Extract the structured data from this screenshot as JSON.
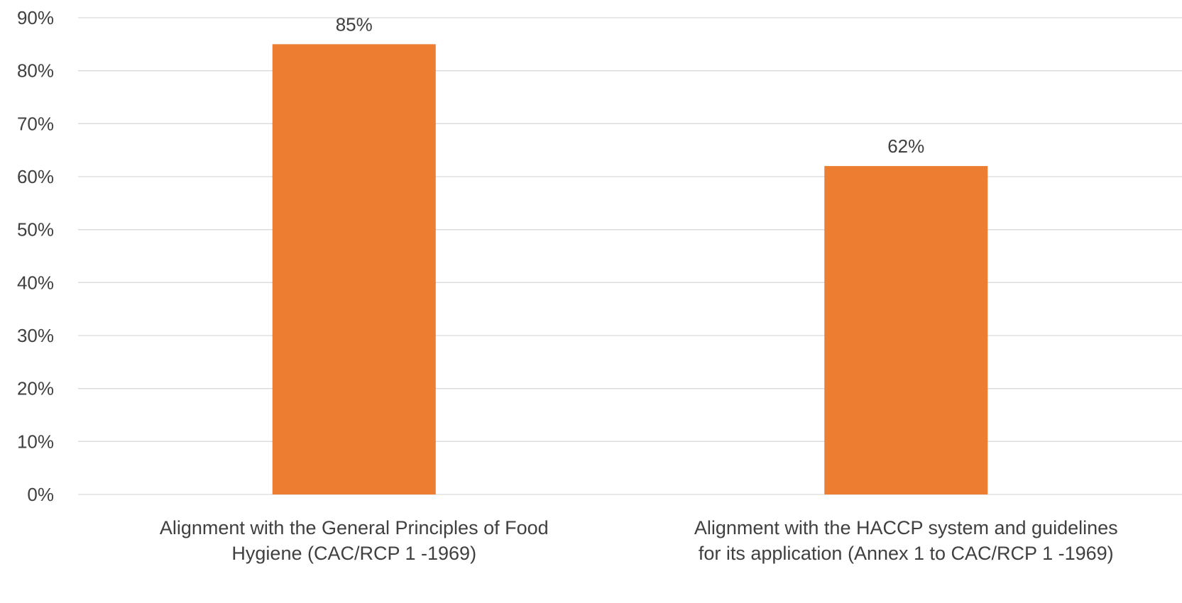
{
  "chart_data": {
    "type": "bar",
    "categories": [
      [
        "Alignment with the General Principles of Food",
        "Hygiene (CAC/RCP 1 -1969)"
      ],
      [
        "Alignment with the HACCP system and guidelines",
        "for its application (Annex 1 to CAC/RCP 1 -1969)"
      ]
    ],
    "values": [
      85,
      62
    ],
    "data_labels": [
      "85%",
      "62%"
    ],
    "yticks": [
      "0%",
      "10%",
      "20%",
      "30%",
      "40%",
      "50%",
      "60%",
      "70%",
      "80%",
      "90%"
    ],
    "ylim": [
      0,
      90
    ],
    "grid": true,
    "legend": "none",
    "bar_color": "#ED7D31",
    "grid_color": "#D9D9D9",
    "text_color": "#404040"
  }
}
